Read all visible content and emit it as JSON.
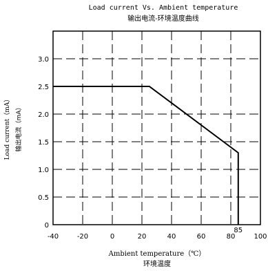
{
  "chart_data": {
    "type": "line",
    "title": "Load current Vs. Ambient temperature",
    "subtitle": "输出电流-环境温度曲线",
    "xlabel": "Ambient temperature（℃）",
    "xlabel_cn": "环境温度",
    "ylabel": "Load current（mA）",
    "ylabel_cn": "输出电流（mA）",
    "xlim": [
      -40,
      100
    ],
    "ylim": [
      0,
      3.5
    ],
    "x_ticks": [
      -40,
      -20,
      0,
      20,
      40,
      60,
      80,
      100
    ],
    "y_ticks": [
      0,
      0.5,
      1.0,
      1.5,
      2.0,
      2.5,
      3.0
    ],
    "x_tick_labels": [
      "-40",
      "-20",
      "0",
      "20",
      "40",
      "60",
      "80",
      "100"
    ],
    "y_tick_labels": [
      "0",
      "0.5",
      "1.0",
      "1.5",
      "2.0",
      "2.5",
      "3.0"
    ],
    "annotation": "85",
    "annotation_x": 85,
    "grid": true,
    "grid_style": "dashed",
    "series": [
      {
        "x": [
          -40,
          25,
          85,
          85
        ],
        "y": [
          2.5,
          2.5,
          1.3,
          0
        ]
      }
    ],
    "colors": {
      "line": "#000000",
      "grid": "#000000",
      "text": "#000000"
    }
  }
}
